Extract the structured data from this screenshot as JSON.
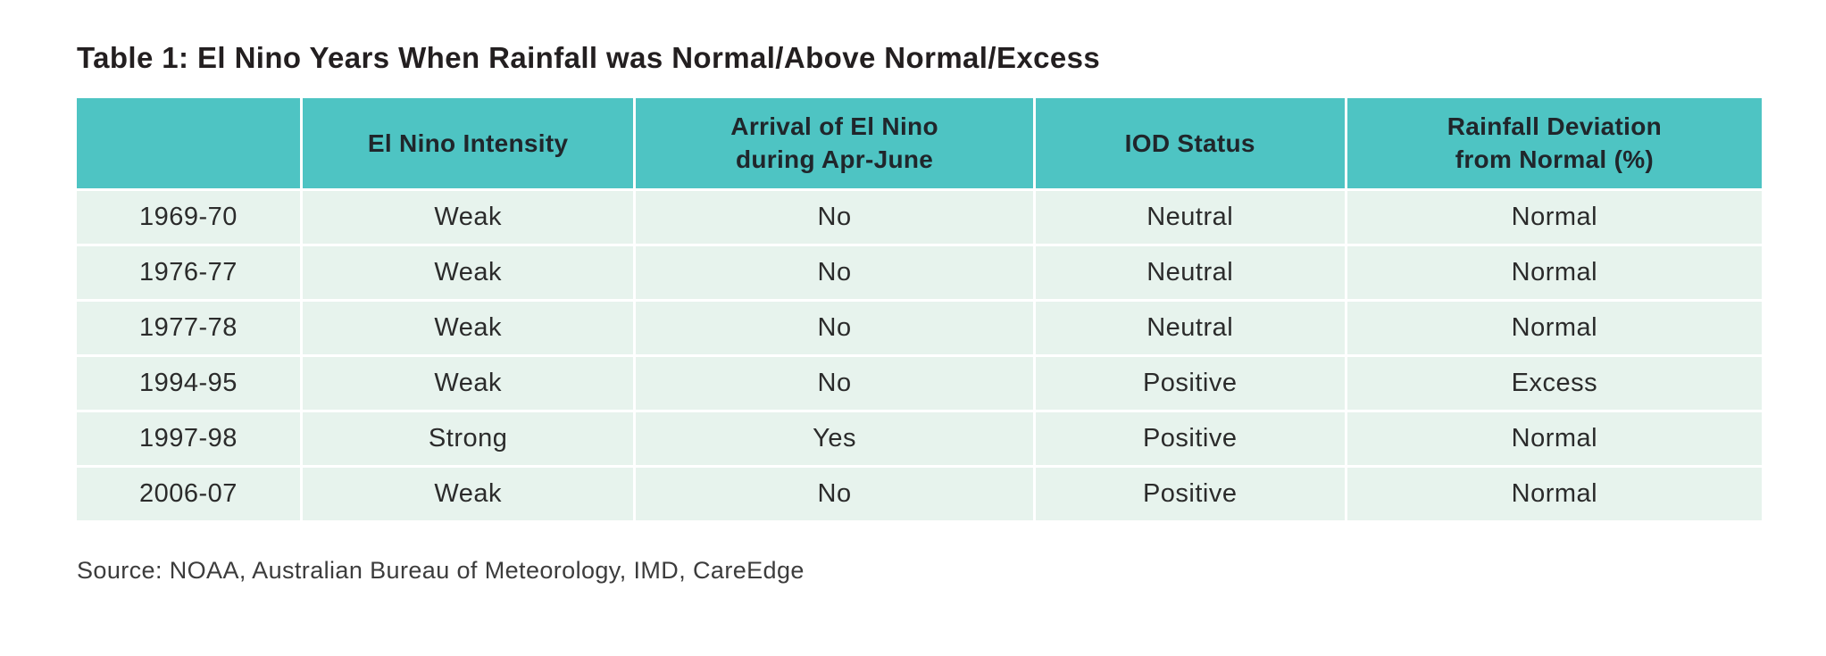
{
  "colors": {
    "header_bg": "#4EC4C3",
    "row_bg": "#E7F3ED",
    "title_color": "#231F20",
    "header_text": "#20262B",
    "body_text": "#2B2B2B",
    "source_text": "#3C3C3C",
    "grid_line": "#FFFFFF"
  },
  "table": {
    "title": "Table 1: El Nino Years When Rainfall was Normal/Above Normal/Excess",
    "columns": [
      {
        "label": ""
      },
      {
        "label": "El Nino Intensity"
      },
      {
        "label": "Arrival of El Nino\nduring Apr-June"
      },
      {
        "label": "IOD Status"
      },
      {
        "label": "Rainfall Deviation\nfrom Normal (%)"
      }
    ],
    "rows": [
      [
        "1969-70",
        "Weak",
        "No",
        "Neutral",
        "Normal"
      ],
      [
        "1976-77",
        "Weak",
        "No",
        "Neutral",
        "Normal"
      ],
      [
        "1977-78",
        "Weak",
        "No",
        "Neutral",
        "Normal"
      ],
      [
        "1994-95",
        "Weak",
        "No",
        "Positive",
        "Excess"
      ],
      [
        "1997-98",
        "Strong",
        "Yes",
        "Positive",
        "Normal"
      ],
      [
        "2006-07",
        "Weak",
        "No",
        "Positive",
        "Normal"
      ]
    ],
    "source": "Source: NOAA, Australian Bureau of Meteorology, IMD, CareEdge"
  }
}
